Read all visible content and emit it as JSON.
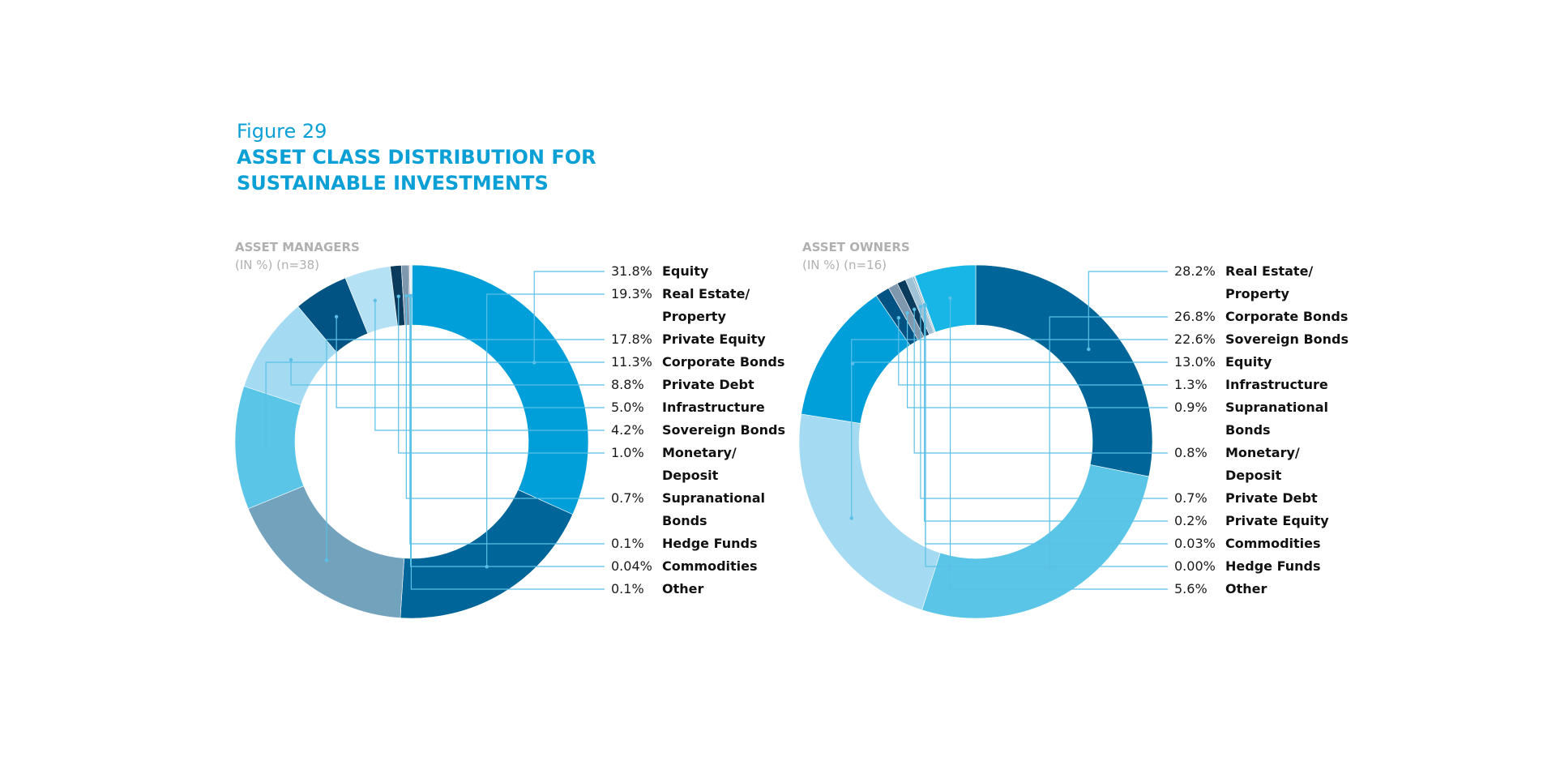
{
  "figure_number": "Figure 29",
  "figure_title_lines": [
    "ASSET CLASS DISTRIBUTION FOR",
    "SUSTAINABLE INVESTMENTS"
  ],
  "chart_data": [
    {
      "type": "pie",
      "donut": true,
      "title": "ASSET MANAGERS",
      "subtitle": "(IN %) (n=38)",
      "slices": [
        {
          "value": 31.8,
          "pct_label": "31.8%",
          "label_lines": [
            "Equity"
          ],
          "color": "#009fda"
        },
        {
          "value": 19.3,
          "pct_label": "19.3%",
          "label_lines": [
            "Real Estate/",
            "Property"
          ],
          "color": "#006699"
        },
        {
          "value": 17.8,
          "pct_label": "17.8%",
          "label_lines": [
            "Private Equity"
          ],
          "color": "#73a2bd"
        },
        {
          "value": 11.3,
          "pct_label": "11.3%",
          "label_lines": [
            "Corporate Bonds"
          ],
          "color": "#5bc5e8"
        },
        {
          "value": 8.8,
          "pct_label": "8.8%",
          "label_lines": [
            "Private Debt"
          ],
          "color": "#a4daf2"
        },
        {
          "value": 5.0,
          "pct_label": "5.0%",
          "label_lines": [
            "Infrastructure"
          ],
          "color": "#005382"
        },
        {
          "value": 4.2,
          "pct_label": "4.2%",
          "label_lines": [
            "Sovereign Bonds"
          ],
          "color": "#b5e1f5"
        },
        {
          "value": 1.0,
          "pct_label": "1.0%",
          "label_lines": [
            "Monetary/",
            "Deposit"
          ],
          "color": "#0a3a5c"
        },
        {
          "value": 0.7,
          "pct_label": "0.7%",
          "label_lines": [
            "Supranational",
            "Bonds"
          ],
          "color": "#7f98ad"
        },
        {
          "value": 0.1,
          "pct_label": "0.1%",
          "label_lines": [
            "Hedge Funds"
          ],
          "color": "#1b2c44"
        },
        {
          "value": 0.04,
          "pct_label": "0.04%",
          "label_lines": [
            "Commodities"
          ],
          "color": "#c9d6e0"
        },
        {
          "value": 0.1,
          "pct_label": "0.1%",
          "label_lines": [
            "Other"
          ],
          "color": "#d6eef8"
        }
      ]
    },
    {
      "type": "pie",
      "donut": true,
      "title": "ASSET OWNERS",
      "subtitle": "(IN %) (n=16)",
      "slices": [
        {
          "value": 28.2,
          "pct_label": "28.2%",
          "label_lines": [
            "Real Estate/",
            "Property"
          ],
          "color": "#006699"
        },
        {
          "value": 26.8,
          "pct_label": "26.8%",
          "label_lines": [
            "Corporate Bonds"
          ],
          "color": "#5bc5e8"
        },
        {
          "value": 22.6,
          "pct_label": "22.6%",
          "label_lines": [
            "Sovereign Bonds"
          ],
          "color": "#a4daf2"
        },
        {
          "value": 13.0,
          "pct_label": "13.0%",
          "label_lines": [
            "Equity"
          ],
          "color": "#009fda"
        },
        {
          "value": 1.3,
          "pct_label": "1.3%",
          "label_lines": [
            "Infrastructure"
          ],
          "color": "#005382"
        },
        {
          "value": 0.9,
          "pct_label": "0.9%",
          "label_lines": [
            "Supranational",
            "Bonds"
          ],
          "color": "#7f98ad"
        },
        {
          "value": 0.8,
          "pct_label": "0.8%",
          "label_lines": [
            "Monetary/",
            "Deposit"
          ],
          "color": "#0a3a5c"
        },
        {
          "value": 0.7,
          "pct_label": "0.7%",
          "label_lines": [
            "Private Debt"
          ],
          "color": "#9fc2d6"
        },
        {
          "value": 0.2,
          "pct_label": "0.2%",
          "label_lines": [
            "Private Equity"
          ],
          "color": "#73a2bd"
        },
        {
          "value": 0.03,
          "pct_label": "0.03%",
          "label_lines": [
            "Commodities"
          ],
          "color": "#c9d6e0"
        },
        {
          "value": 0.0,
          "pct_label": "0.00%",
          "label_lines": [
            "Hedge Funds"
          ],
          "color": "#1b2c44"
        },
        {
          "value": 5.6,
          "pct_label": "5.6%",
          "label_lines": [
            "Other"
          ],
          "color": "#17b6e6"
        }
      ]
    }
  ]
}
